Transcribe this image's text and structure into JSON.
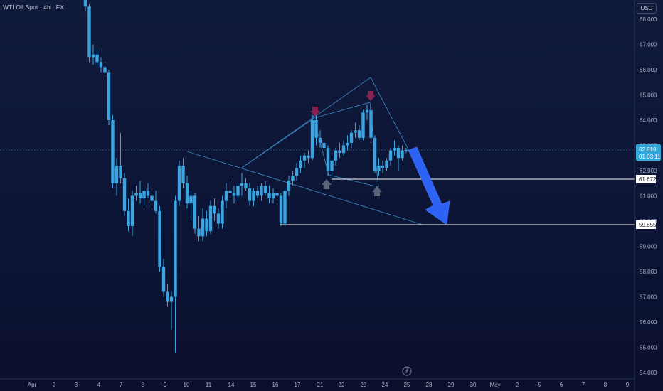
{
  "header": {
    "symbol_title": "WTI Oil Spot · 4h · FX",
    "currency": "USD"
  },
  "price_labels": {
    "current_price": "62.818",
    "countdown": "01:03:11",
    "level_upper": "61.672",
    "level_lower": "59.855"
  },
  "colors": {
    "candle": "#3aa4e0",
    "current_tag": "#2fa9dc",
    "level_tag_bg": "#ffffff",
    "target_arrow": "#2e62f5",
    "pattern_lines": "#3a83b8",
    "marker_down": "#86244f",
    "marker_up": "#5d6679"
  },
  "icons": {
    "watermark": "tradingview-logo-icon",
    "top_markers": "arrow-down-icon",
    "bottom_markers": "arrow-up-icon",
    "target": "big-arrow-down-icon"
  },
  "chart_data": {
    "type": "candlestick",
    "title": "WTI Oil Spot · 4h · FX",
    "yticks": [
      "68.000",
      "67.000",
      "66.000",
      "65.000",
      "64.000",
      "63.000",
      "62.000",
      "61.000",
      "60.000",
      "59.000",
      "58.000",
      "57.000",
      "56.000",
      "55.000",
      "54.000"
    ],
    "xticks": [
      "Apr",
      "2",
      "3",
      "4",
      "7",
      "8",
      "9",
      "10",
      "11",
      "14",
      "15",
      "16",
      "17",
      "21",
      "22",
      "23",
      "24",
      "25",
      "28",
      "29",
      "30",
      "May",
      "2",
      "5",
      "6",
      "7",
      "8",
      "9"
    ],
    "ylim": [
      53.8,
      68.9
    ],
    "candles": [
      [
        68.9,
        69.2,
        68.3,
        68.5
      ],
      [
        68.5,
        68.6,
        66.3,
        66.5
      ],
      [
        66.5,
        67.0,
        66.2,
        66.6
      ],
      [
        66.6,
        66.8,
        66.1,
        66.3
      ],
      [
        66.3,
        66.5,
        65.9,
        66.1
      ],
      [
        66.1,
        66.3,
        65.7,
        65.9
      ],
      [
        65.9,
        66.0,
        63.8,
        64.0
      ],
      [
        64.0,
        64.2,
        61.3,
        61.5
      ],
      [
        61.5,
        62.5,
        61.0,
        62.2
      ],
      [
        62.2,
        63.5,
        61.5,
        61.7
      ],
      [
        61.7,
        61.9,
        60.2,
        60.4
      ],
      [
        60.4,
        60.9,
        59.6,
        59.8
      ],
      [
        59.8,
        61.2,
        59.4,
        61.0
      ],
      [
        61.0,
        61.4,
        60.8,
        61.1
      ],
      [
        61.1,
        61.6,
        60.7,
        60.9
      ],
      [
        60.9,
        61.3,
        60.6,
        61.2
      ],
      [
        61.2,
        61.5,
        60.9,
        61.0
      ],
      [
        61.0,
        61.3,
        60.6,
        60.8
      ],
      [
        60.8,
        61.2,
        60.3,
        60.4
      ],
      [
        60.4,
        60.6,
        58.0,
        58.2
      ],
      [
        58.2,
        58.5,
        57.0,
        57.2
      ],
      [
        57.2,
        57.5,
        56.6,
        56.8
      ],
      [
        56.8,
        57.2,
        55.7,
        57.0
      ],
      [
        57.0,
        61.0,
        54.8,
        60.8
      ],
      [
        60.8,
        62.4,
        60.6,
        62.2
      ],
      [
        62.2,
        62.5,
        61.3,
        61.5
      ],
      [
        61.5,
        61.8,
        60.5,
        60.7
      ],
      [
        60.7,
        61.2,
        60.0,
        61.0
      ],
      [
        61.0,
        61.1,
        59.5,
        59.7
      ],
      [
        59.7,
        60.2,
        59.2,
        59.4
      ],
      [
        59.4,
        60.5,
        59.2,
        60.1
      ],
      [
        60.1,
        60.4,
        59.4,
        59.6
      ],
      [
        59.6,
        60.8,
        59.5,
        60.6
      ],
      [
        60.6,
        60.9,
        60.0,
        60.3
      ],
      [
        60.3,
        60.5,
        59.7,
        59.9
      ],
      [
        59.9,
        61.0,
        59.7,
        60.8
      ],
      [
        60.8,
        61.5,
        60.5,
        61.2
      ],
      [
        61.2,
        61.6,
        60.9,
        61.1
      ],
      [
        61.1,
        61.4,
        60.7,
        61.0
      ],
      [
        61.0,
        61.5,
        60.8,
        61.4
      ],
      [
        61.4,
        61.9,
        61.0,
        61.5
      ],
      [
        61.5,
        61.7,
        61.2,
        61.3
      ],
      [
        61.3,
        61.5,
        60.6,
        60.8
      ],
      [
        60.8,
        61.3,
        60.6,
        61.2
      ],
      [
        61.2,
        61.4,
        60.9,
        61.0
      ],
      [
        61.0,
        61.5,
        60.8,
        61.4
      ],
      [
        61.4,
        61.6,
        61.0,
        61.1
      ],
      [
        61.1,
        61.4,
        60.7,
        60.9
      ],
      [
        60.9,
        61.3,
        60.7,
        61.1
      ],
      [
        61.1,
        61.2,
        60.8,
        61.0
      ],
      [
        61.0,
        61.1,
        59.8,
        59.9
      ],
      [
        59.9,
        61.3,
        59.8,
        61.2
      ],
      [
        61.2,
        61.8,
        61.0,
        61.6
      ],
      [
        61.6,
        62.0,
        61.4,
        61.8
      ],
      [
        61.8,
        62.3,
        61.6,
        62.1
      ],
      [
        62.1,
        62.6,
        61.9,
        62.4
      ],
      [
        62.4,
        62.7,
        62.1,
        62.6
      ],
      [
        62.6,
        62.8,
        62.3,
        62.5
      ],
      [
        62.5,
        64.2,
        62.4,
        64.0
      ],
      [
        64.0,
        64.2,
        63.0,
        63.3
      ],
      [
        63.3,
        63.6,
        62.9,
        63.1
      ],
      [
        63.1,
        63.3,
        62.7,
        62.9
      ],
      [
        62.9,
        63.0,
        61.8,
        62.0
      ],
      [
        62.0,
        62.5,
        61.7,
        62.4
      ],
      [
        62.4,
        62.9,
        62.2,
        62.8
      ],
      [
        62.8,
        63.1,
        62.5,
        62.7
      ],
      [
        62.7,
        63.2,
        62.6,
        63.0
      ],
      [
        63.0,
        63.4,
        62.8,
        63.1
      ],
      [
        63.1,
        63.6,
        62.9,
        63.5
      ],
      [
        63.5,
        63.9,
        63.3,
        63.6
      ],
      [
        63.6,
        63.8,
        63.2,
        63.3
      ],
      [
        63.3,
        64.4,
        63.2,
        64.3
      ],
      [
        64.3,
        64.6,
        64.0,
        64.4
      ],
      [
        64.4,
        64.5,
        63.1,
        63.3
      ],
      [
        63.3,
        63.4,
        61.9,
        62.0
      ],
      [
        62.0,
        62.5,
        61.8,
        62.2
      ],
      [
        62.2,
        62.4,
        61.9,
        62.1
      ],
      [
        62.1,
        62.5,
        62.0,
        62.4
      ],
      [
        62.4,
        62.9,
        62.2,
        62.8
      ],
      [
        62.8,
        63.2,
        62.6,
        62.9
      ],
      [
        62.9,
        63.0,
        62.0,
        62.5
      ],
      [
        62.5,
        63.0,
        62.4,
        62.8
      ],
      [
        62.8,
        62.9,
        62.7,
        62.82
      ]
    ],
    "current_price": 62.818,
    "horizontal_levels": [
      61.672,
      59.855
    ]
  }
}
